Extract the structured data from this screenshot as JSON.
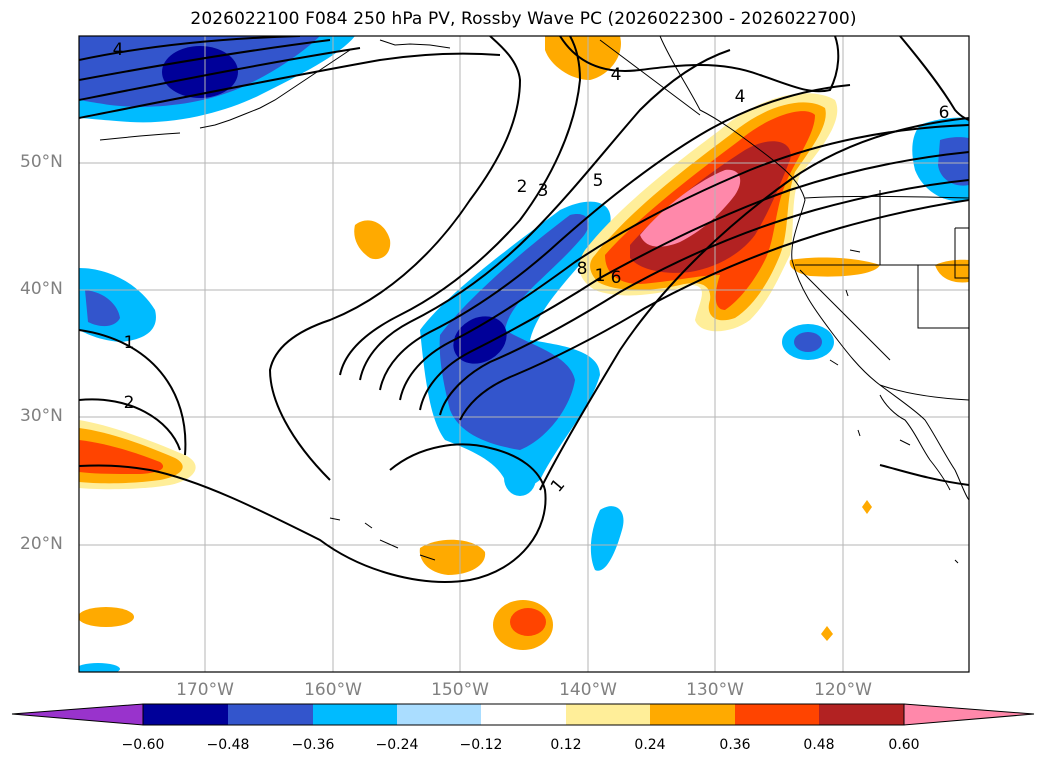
{
  "title": "2026022100 F084 250 hPa PV, Rossby Wave PC (2026022300 - 2026022700)",
  "lat_labels": [
    "50°N",
    "40°N",
    "30°N",
    "20°N"
  ],
  "lon_labels": [
    "170°W",
    "160°W",
    "150°W",
    "140°W",
    "130°W",
    "120°W"
  ],
  "contour_labels": [
    "4",
    "4",
    "4",
    "6",
    "2",
    "3",
    "5",
    "8",
    "1",
    "6",
    "1",
    "2",
    "1"
  ],
  "colorbar": {
    "ticks": [
      "−0.60",
      "−0.48",
      "−0.36",
      "−0.24",
      "−0.12",
      "0.12",
      "0.24",
      "0.36",
      "0.48",
      "0.60"
    ],
    "colors": [
      "#9933cc",
      "#000099",
      "#3355cc",
      "#00bbff",
      "#aaddff",
      "#ffffff",
      "#ffee99",
      "#ffaa00",
      "#ff4400",
      "#b22222",
      "#ff88aa"
    ]
  }
}
